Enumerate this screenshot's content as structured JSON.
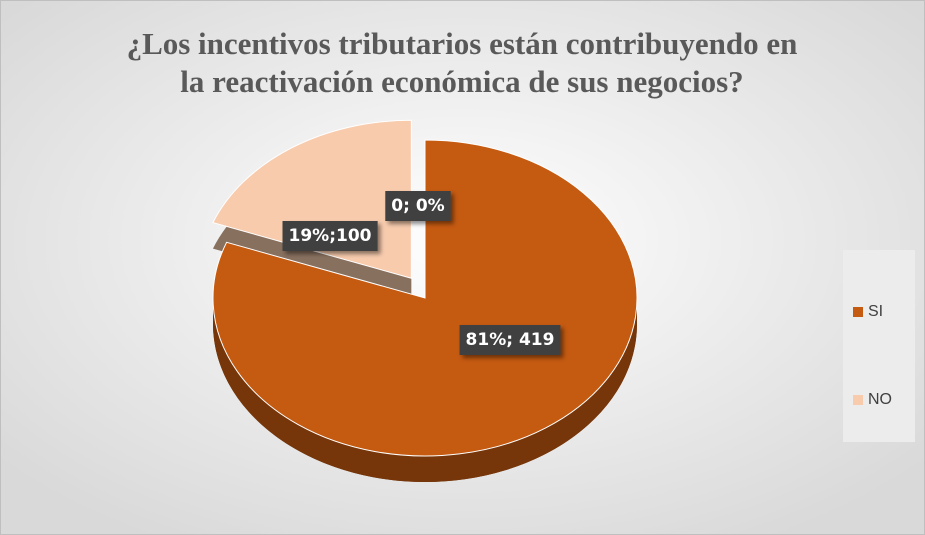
{
  "chart_data": {
    "type": "pie",
    "title": [
      "¿Los incentivos tributarios están contribuyendo en",
      "la reactivación económica de sus negocios?"
    ],
    "categories": [
      "SI",
      "NO",
      null
    ],
    "values": [
      419,
      100,
      0
    ],
    "value_labels": [
      "81%; 419",
      "19%;100",
      "0; 0%"
    ],
    "colors": [
      "#c55a11",
      "#f8cbad",
      "#a5a5a5"
    ],
    "legend": "right"
  }
}
